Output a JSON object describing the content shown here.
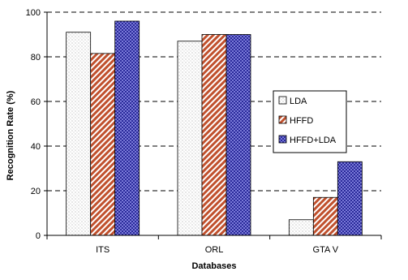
{
  "chart_data": {
    "type": "bar",
    "categories": [
      "ITS",
      "ORL",
      "GTA V"
    ],
    "series": [
      {
        "name": "LDA",
        "values": [
          91,
          87,
          7
        ],
        "color": "#ffffff",
        "pattern": "dots"
      },
      {
        "name": "HFFD",
        "values": [
          81.5,
          90,
          17
        ],
        "color": "#c0502d",
        "pattern": "diagonal-stripes"
      },
      {
        "name": "HFFD+LDA",
        "values": [
          96,
          90,
          33
        ],
        "color": "#3f3fb0",
        "pattern": "checkered"
      }
    ],
    "xlabel": "Databases",
    "ylabel": "Recognition Rate (%)",
    "ylim": [
      0,
      100
    ],
    "yticks": [
      0,
      20,
      40,
      60,
      80,
      100
    ],
    "grid": true,
    "legend_position": "right"
  }
}
